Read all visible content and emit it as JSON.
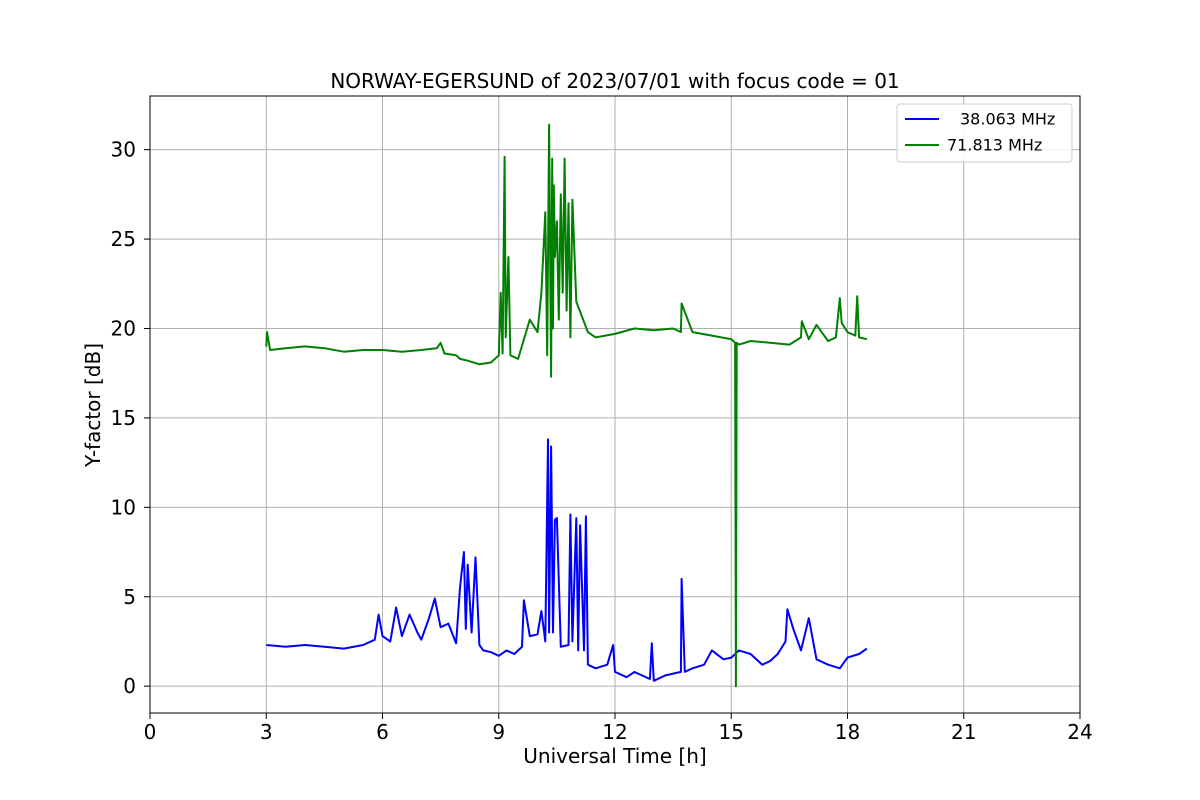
{
  "chart_data": {
    "type": "line",
    "title": "NORWAY-EGERSUND of 2023/07/01 with focus code = 01",
    "xlabel": "Universal Time [h]",
    "ylabel": "Y-factor [dB]",
    "xlim": [
      0,
      24
    ],
    "ylim": [
      -1.5,
      33
    ],
    "xticks": [
      0,
      3,
      6,
      9,
      12,
      15,
      18,
      21,
      24
    ],
    "yticks": [
      0,
      5,
      10,
      15,
      20,
      25,
      30
    ],
    "grid": true,
    "legend_position": "top-right",
    "series": [
      {
        "name": "38.063 MHz",
        "color": "#0000ff",
        "x": [
          3.0,
          3.5,
          4.0,
          4.5,
          5.0,
          5.5,
          5.8,
          5.9,
          6.0,
          6.2,
          6.35,
          6.5,
          6.7,
          6.9,
          7.0,
          7.2,
          7.35,
          7.5,
          7.7,
          7.9,
          8.0,
          8.1,
          8.15,
          8.2,
          8.3,
          8.4,
          8.5,
          8.6,
          8.8,
          9.0,
          9.2,
          9.4,
          9.6,
          9.65,
          9.8,
          10.0,
          10.1,
          10.2,
          10.27,
          10.3,
          10.35,
          10.4,
          10.45,
          10.5,
          10.6,
          10.8,
          10.85,
          10.9,
          11.0,
          11.05,
          11.1,
          11.2,
          11.25,
          11.3,
          11.5,
          11.8,
          11.95,
          12.0,
          12.3,
          12.5,
          12.9,
          12.95,
          13.0,
          13.3,
          13.7,
          13.72,
          13.8,
          14.0,
          14.3,
          14.5,
          14.8,
          15.0,
          15.2,
          15.5,
          15.8,
          16.0,
          16.2,
          16.4,
          16.45,
          16.6,
          16.8,
          17.0,
          17.2,
          17.5,
          17.8,
          18.0,
          18.3,
          18.5
        ],
        "y": [
          2.3,
          2.2,
          2.3,
          2.2,
          2.1,
          2.3,
          2.6,
          4.0,
          2.8,
          2.5,
          4.4,
          2.8,
          4.0,
          3.0,
          2.6,
          3.8,
          4.9,
          3.3,
          3.5,
          2.4,
          5.5,
          7.5,
          3.2,
          6.8,
          3.0,
          7.2,
          2.3,
          2.0,
          1.9,
          1.7,
          2.0,
          1.8,
          2.2,
          4.8,
          2.8,
          2.9,
          4.2,
          2.5,
          13.8,
          3.0,
          13.4,
          3.0,
          9.3,
          9.4,
          2.2,
          2.3,
          9.6,
          2.5,
          9.4,
          2.0,
          9.0,
          2.0,
          9.5,
          1.2,
          1.0,
          1.2,
          2.3,
          0.8,
          0.5,
          0.8,
          0.4,
          2.4,
          0.3,
          0.6,
          0.8,
          6.0,
          0.8,
          1.0,
          1.2,
          2.0,
          1.5,
          1.6,
          2.0,
          1.8,
          1.2,
          1.4,
          1.8,
          2.5,
          4.3,
          3.2,
          2.0,
          3.8,
          1.5,
          1.2,
          1.0,
          1.6,
          1.8,
          2.1
        ]
      },
      {
        "name": "71.813 MHz",
        "color": "#008000",
        "x": [
          3.0,
          3.02,
          3.1,
          3.5,
          4.0,
          4.5,
          5.0,
          5.5,
          6.0,
          6.5,
          7.0,
          7.4,
          7.5,
          7.6,
          7.9,
          8.0,
          8.2,
          8.5,
          8.8,
          9.0,
          9.05,
          9.1,
          9.15,
          9.18,
          9.25,
          9.3,
          9.5,
          9.8,
          10.0,
          10.1,
          10.2,
          10.25,
          10.3,
          10.35,
          10.38,
          10.4,
          10.42,
          10.45,
          10.5,
          10.55,
          10.6,
          10.65,
          10.7,
          10.75,
          10.8,
          10.85,
          10.9,
          11.0,
          11.3,
          11.5,
          12.0,
          12.5,
          13.0,
          13.5,
          13.7,
          13.72,
          14.0,
          14.5,
          15.0,
          15.1,
          15.12,
          15.14,
          15.2,
          15.5,
          16.0,
          16.5,
          16.8,
          16.82,
          17.0,
          17.2,
          17.5,
          17.7,
          17.8,
          17.85,
          18.0,
          18.2,
          18.25,
          18.3,
          18.5
        ],
        "y": [
          19.0,
          19.8,
          18.8,
          18.9,
          19.0,
          18.9,
          18.7,
          18.8,
          18.8,
          18.7,
          18.8,
          18.9,
          19.2,
          18.6,
          18.5,
          18.3,
          18.2,
          18.0,
          18.1,
          18.5,
          22.0,
          18.6,
          29.6,
          19.5,
          24.0,
          18.5,
          18.3,
          20.5,
          19.8,
          22.0,
          26.5,
          18.5,
          31.4,
          17.3,
          29.5,
          20.0,
          28.0,
          24.0,
          26.0,
          20.5,
          27.5,
          22.0,
          29.5,
          21.0,
          27.0,
          19.5,
          27.2,
          21.5,
          19.8,
          19.5,
          19.7,
          20.0,
          19.9,
          20.0,
          19.8,
          21.4,
          19.8,
          19.6,
          19.4,
          19.2,
          0.0,
          19.2,
          19.1,
          19.3,
          19.2,
          19.1,
          19.5,
          20.4,
          19.4,
          20.2,
          19.3,
          19.5,
          21.7,
          20.3,
          19.8,
          19.6,
          21.8,
          19.5,
          19.4
        ]
      }
    ]
  }
}
